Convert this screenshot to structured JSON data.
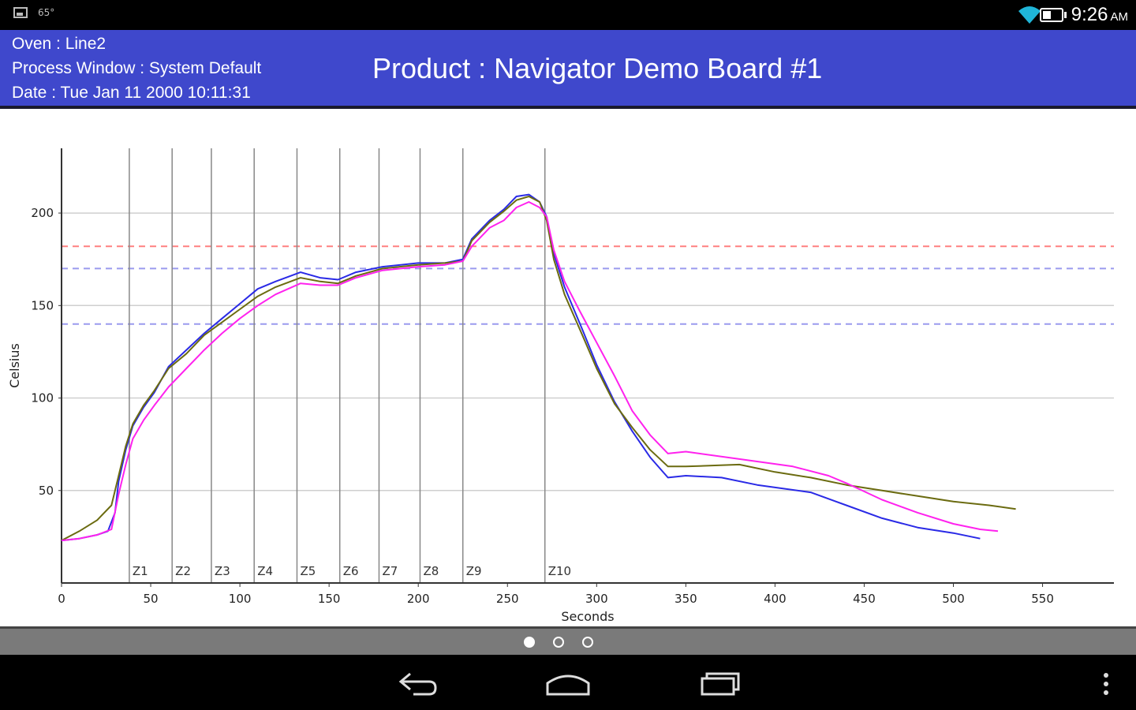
{
  "status_bar": {
    "time": "9:26",
    "ampm": "AM",
    "notification_text": "65°",
    "icons": [
      "gallery-icon",
      "temperature-icon",
      "wifi-icon",
      "battery-icon"
    ]
  },
  "header": {
    "oven": "Oven : Line2",
    "process_window": "Process Window : System Default",
    "date": "Date : Tue Jan 11 2000  10:11:31",
    "product": "Product : Navigator Demo Board #1"
  },
  "colors": {
    "header_bg": "#3f48cc",
    "series_blue": "#2a2ae6",
    "series_olive": "#6b6b10",
    "series_magenta": "#ff22ee",
    "limit_red": "#ff8080",
    "limit_blue": "#9a9aee"
  },
  "chart_data": {
    "type": "line",
    "xlabel": "Seconds",
    "ylabel": "Celsius",
    "xlim": [
      0,
      590
    ],
    "ylim": [
      0,
      235
    ],
    "x_ticks": [
      "0",
      "50",
      "100",
      "150",
      "200",
      "250",
      "300",
      "350",
      "400",
      "450",
      "500",
      "550"
    ],
    "y_ticks": [
      "50",
      "100",
      "150",
      "200"
    ],
    "grid": "horizontal",
    "zones": [
      {
        "label": "Z1",
        "end": 38
      },
      {
        "label": "Z2",
        "end": 62
      },
      {
        "label": "Z3",
        "end": 84
      },
      {
        "label": "Z4",
        "end": 108
      },
      {
        "label": "Z5",
        "end": 132
      },
      {
        "label": "Z6",
        "end": 156
      },
      {
        "label": "Z7",
        "end": 178
      },
      {
        "label": "Z8",
        "end": 201
      },
      {
        "label": "Z9",
        "end": 225
      },
      {
        "label": "Z10",
        "end": 271
      }
    ],
    "limits": [
      {
        "value": 182,
        "color": "#ff8080"
      },
      {
        "value": 170,
        "color": "#9a9aee"
      },
      {
        "value": 140,
        "color": "#9a9aee"
      }
    ],
    "series": [
      {
        "color": "#2a2ae6",
        "points": [
          [
            0,
            23
          ],
          [
            10,
            24
          ],
          [
            20,
            26
          ],
          [
            26,
            28
          ],
          [
            30,
            38
          ],
          [
            32,
            55
          ],
          [
            36,
            72
          ],
          [
            40,
            85
          ],
          [
            46,
            95
          ],
          [
            52,
            103
          ],
          [
            60,
            117
          ],
          [
            70,
            126
          ],
          [
            80,
            135
          ],
          [
            90,
            143
          ],
          [
            100,
            151
          ],
          [
            110,
            159
          ],
          [
            120,
            163
          ],
          [
            134,
            168
          ],
          [
            145,
            165
          ],
          [
            155,
            164
          ],
          [
            165,
            168
          ],
          [
            180,
            171
          ],
          [
            200,
            173
          ],
          [
            215,
            173
          ],
          [
            225,
            175
          ],
          [
            230,
            186
          ],
          [
            240,
            196
          ],
          [
            248,
            202
          ],
          [
            255,
            209
          ],
          [
            262,
            210
          ],
          [
            268,
            206
          ],
          [
            272,
            198
          ],
          [
            276,
            178
          ],
          [
            282,
            160
          ],
          [
            292,
            137
          ],
          [
            300,
            118
          ],
          [
            310,
            98
          ],
          [
            320,
            82
          ],
          [
            330,
            68
          ],
          [
            340,
            57
          ],
          [
            350,
            58
          ],
          [
            370,
            57
          ],
          [
            390,
            53
          ],
          [
            420,
            49
          ],
          [
            440,
            42
          ],
          [
            460,
            35
          ],
          [
            480,
            30
          ],
          [
            500,
            27
          ],
          [
            515,
            24
          ]
        ]
      },
      {
        "color": "#6b6b10",
        "points": [
          [
            0,
            23
          ],
          [
            10,
            28
          ],
          [
            20,
            34
          ],
          [
            28,
            42
          ],
          [
            32,
            58
          ],
          [
            36,
            74
          ],
          [
            40,
            86
          ],
          [
            46,
            96
          ],
          [
            52,
            104
          ],
          [
            60,
            116
          ],
          [
            70,
            124
          ],
          [
            80,
            134
          ],
          [
            90,
            141
          ],
          [
            100,
            148
          ],
          [
            110,
            155
          ],
          [
            120,
            160
          ],
          [
            134,
            165
          ],
          [
            145,
            163
          ],
          [
            155,
            162
          ],
          [
            165,
            166
          ],
          [
            180,
            170
          ],
          [
            200,
            172
          ],
          [
            215,
            173
          ],
          [
            225,
            174
          ],
          [
            230,
            185
          ],
          [
            240,
            195
          ],
          [
            248,
            201
          ],
          [
            255,
            207
          ],
          [
            262,
            209
          ],
          [
            268,
            206
          ],
          [
            272,
            196
          ],
          [
            276,
            175
          ],
          [
            282,
            156
          ],
          [
            292,
            134
          ],
          [
            300,
            116
          ],
          [
            310,
            97
          ],
          [
            320,
            84
          ],
          [
            330,
            72
          ],
          [
            340,
            63
          ],
          [
            350,
            63
          ],
          [
            380,
            64
          ],
          [
            400,
            60
          ],
          [
            420,
            57
          ],
          [
            440,
            53
          ],
          [
            460,
            50
          ],
          [
            480,
            47
          ],
          [
            500,
            44
          ],
          [
            520,
            42
          ],
          [
            535,
            40
          ]
        ]
      },
      {
        "color": "#ff22ee",
        "points": [
          [
            0,
            23
          ],
          [
            10,
            24
          ],
          [
            20,
            26
          ],
          [
            28,
            29
          ],
          [
            32,
            48
          ],
          [
            36,
            64
          ],
          [
            40,
            78
          ],
          [
            46,
            88
          ],
          [
            52,
            96
          ],
          [
            60,
            106
          ],
          [
            70,
            116
          ],
          [
            80,
            126
          ],
          [
            90,
            135
          ],
          [
            100,
            143
          ],
          [
            110,
            150
          ],
          [
            120,
            156
          ],
          [
            134,
            162
          ],
          [
            145,
            161
          ],
          [
            155,
            161
          ],
          [
            165,
            165
          ],
          [
            180,
            169
          ],
          [
            200,
            171
          ],
          [
            215,
            172
          ],
          [
            225,
            174
          ],
          [
            230,
            182
          ],
          [
            240,
            192
          ],
          [
            248,
            196
          ],
          [
            255,
            203
          ],
          [
            262,
            206
          ],
          [
            268,
            203
          ],
          [
            272,
            198
          ],
          [
            276,
            180
          ],
          [
            282,
            163
          ],
          [
            290,
            148
          ],
          [
            300,
            130
          ],
          [
            310,
            112
          ],
          [
            320,
            93
          ],
          [
            330,
            80
          ],
          [
            340,
            70
          ],
          [
            350,
            71
          ],
          [
            380,
            67
          ],
          [
            410,
            63
          ],
          [
            430,
            58
          ],
          [
            440,
            54
          ],
          [
            460,
            45
          ],
          [
            480,
            38
          ],
          [
            500,
            32
          ],
          [
            515,
            29
          ],
          [
            525,
            28
          ]
        ]
      }
    ]
  }
}
